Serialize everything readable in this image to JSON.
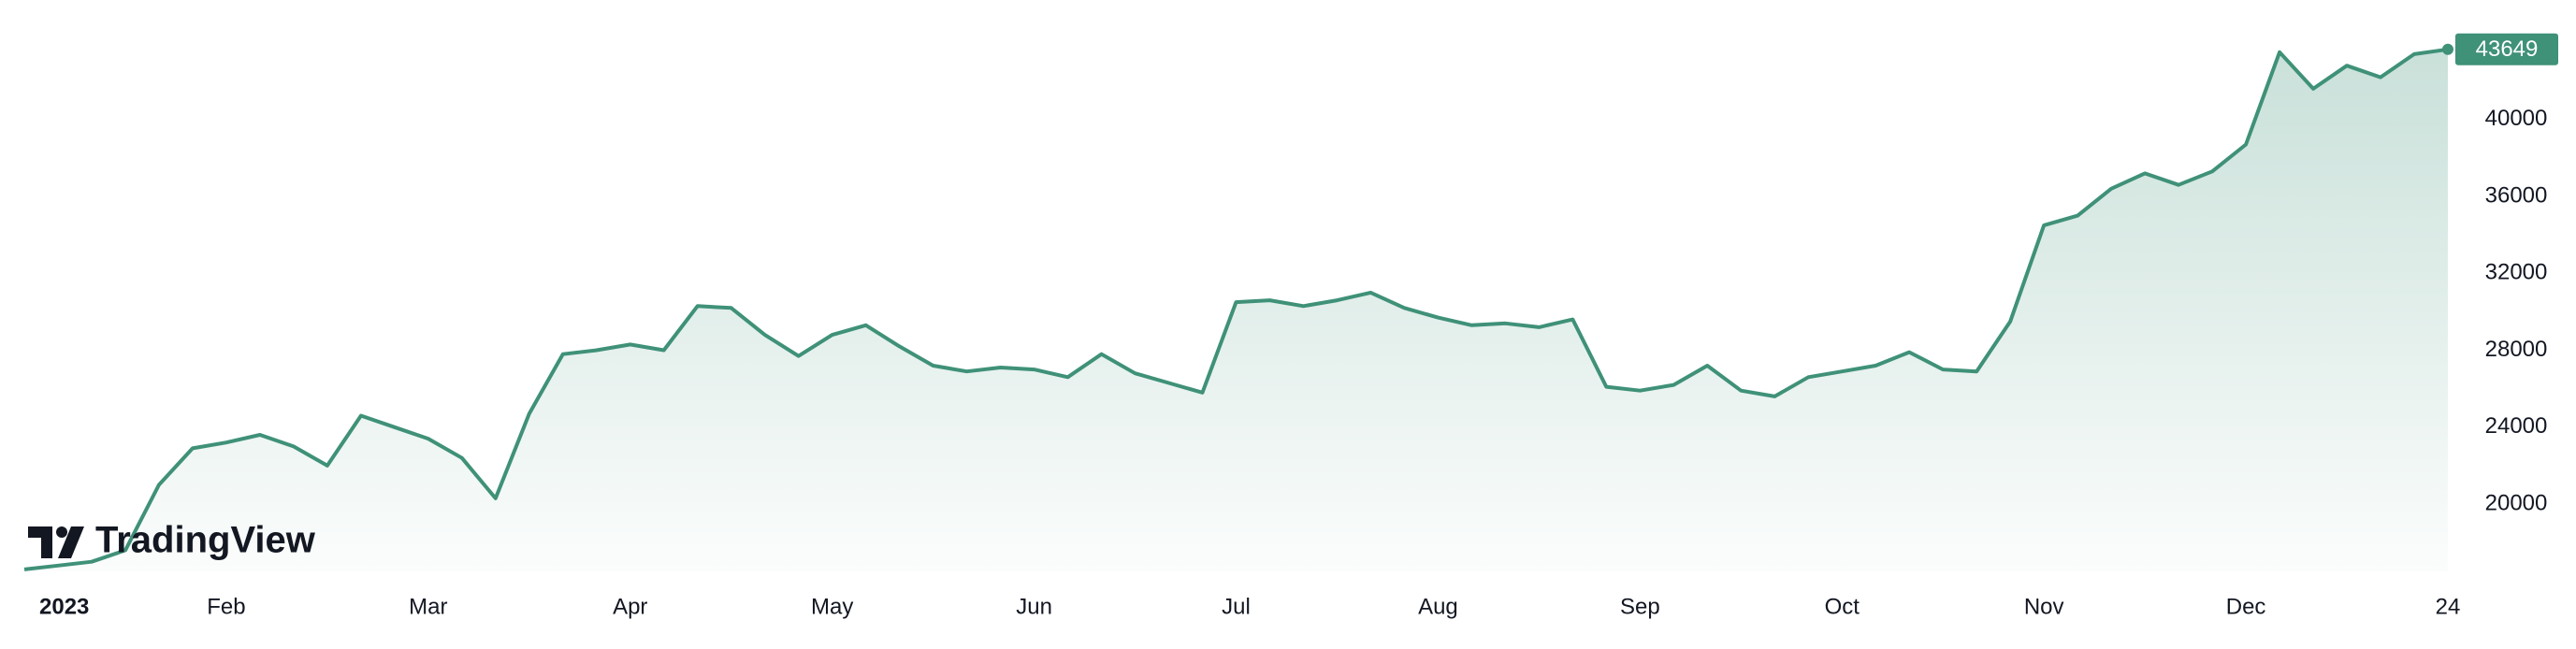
{
  "chart_data": {
    "type": "area",
    "watermark": "TradingView",
    "categories": [
      "2023",
      null,
      null,
      null,
      null,
      null,
      "Feb",
      null,
      null,
      null,
      null,
      null,
      "Mar",
      null,
      null,
      null,
      null,
      null,
      "Apr",
      null,
      null,
      null,
      null,
      null,
      "May",
      null,
      null,
      null,
      null,
      null,
      "Jun",
      null,
      null,
      null,
      null,
      null,
      "Jul",
      null,
      null,
      null,
      null,
      null,
      "Aug",
      null,
      null,
      null,
      null,
      null,
      "Sep",
      null,
      null,
      null,
      null,
      null,
      "Oct",
      null,
      null,
      null,
      null,
      null,
      "Nov",
      null,
      null,
      null,
      null,
      null,
      "Dec",
      null,
      null,
      null,
      null,
      null,
      "24"
    ],
    "values": [
      16600,
      16800,
      17000,
      17600,
      21000,
      22900,
      23200,
      23600,
      23000,
      22000,
      24600,
      24000,
      23400,
      22400,
      20300,
      24700,
      27800,
      28000,
      28300,
      28000,
      30300,
      30200,
      28800,
      27700,
      28800,
      29300,
      28200,
      27200,
      26900,
      27100,
      27000,
      26600,
      27800,
      26800,
      26300,
      25800,
      30500,
      30600,
      30300,
      30600,
      31000,
      30200,
      29700,
      29300,
      29400,
      29200,
      29600,
      26100,
      25900,
      26200,
      27200,
      25900,
      25600,
      26600,
      26900,
      27200,
      27900,
      27000,
      26900,
      29500,
      34500,
      35000,
      36400,
      37200,
      36600,
      37300,
      38700,
      43500,
      41600,
      42800,
      42200,
      43400,
      43649
    ],
    "color": "#3f9178",
    "ylim": [
      16500,
      45000
    ],
    "yticks": [
      20000,
      24000,
      28000,
      32000,
      36000,
      40000
    ],
    "grid": false
  }
}
